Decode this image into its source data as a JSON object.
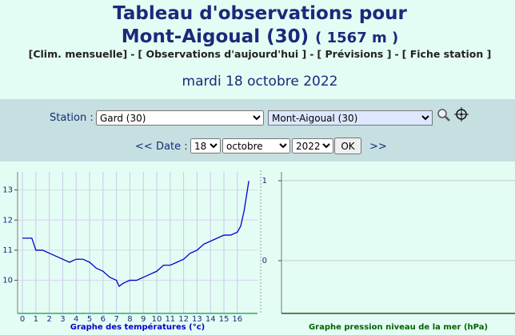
{
  "header": {
    "title_line1": "Tableau d'observations pour",
    "title_line2": "Mont-Aigoual (30)",
    "altitude": "( 1567 m )",
    "links": [
      "[Clim. mensuelle]",
      "[ Observations d'aujourd'hui ]",
      "[ Prévisions ]",
      "[ Fiche station ]"
    ],
    "separator": "-",
    "date": "mardi 18 octobre 2022"
  },
  "form": {
    "station_label": "Station :",
    "department": "Gard (30)",
    "station": "Mont-Aigoual (30)",
    "prev": "<<",
    "date_label": "Date :",
    "day": "18",
    "month": "octobre",
    "year": "2022",
    "ok": "OK",
    "next": ">>"
  },
  "chart_data": [
    {
      "type": "line",
      "title": "Graphe des températures (°c)",
      "title_color": "#0000cc",
      "x": [
        0,
        0.7,
        1,
        1.5,
        2,
        2.5,
        3,
        3.5,
        4,
        4.5,
        5,
        5.5,
        6,
        6.5,
        7,
        7.2,
        7.5,
        8,
        8.5,
        9,
        9.5,
        10,
        10.5,
        11,
        11.5,
        12,
        12.5,
        13,
        13.5,
        14,
        14.5,
        15,
        15.5,
        16,
        16.25,
        16.5,
        16.75,
        16.85
      ],
      "series": [
        {
          "color": "#0000cc",
          "values": [
            11.4,
            11.4,
            11.0,
            11.0,
            10.9,
            10.8,
            10.7,
            10.6,
            10.7,
            10.7,
            10.6,
            10.4,
            10.3,
            10.1,
            10.0,
            9.8,
            9.9,
            10.0,
            10.0,
            10.1,
            10.2,
            10.3,
            10.5,
            10.5,
            10.6,
            10.7,
            10.9,
            11.0,
            11.2,
            11.3,
            11.4,
            11.5,
            11.5,
            11.6,
            11.8,
            12.3,
            13.0,
            13.3
          ]
        }
      ],
      "xlim": [
        -0.36,
        17.5
      ],
      "xticks": [
        0,
        1,
        2,
        3,
        4,
        5,
        6,
        7,
        8,
        9,
        10,
        11,
        12,
        13,
        14,
        15,
        16
      ],
      "ylim": [
        8.9,
        13.6
      ],
      "yticks": [
        10,
        11,
        12,
        13
      ],
      "grid": true
    },
    {
      "type": "line",
      "title": "Graphe pression niveau de la mer (hPa)",
      "title_color": "#006400",
      "ylim": [
        -0.66,
        1.11
      ],
      "yticks": [
        0,
        1
      ],
      "grid": true
    }
  ]
}
